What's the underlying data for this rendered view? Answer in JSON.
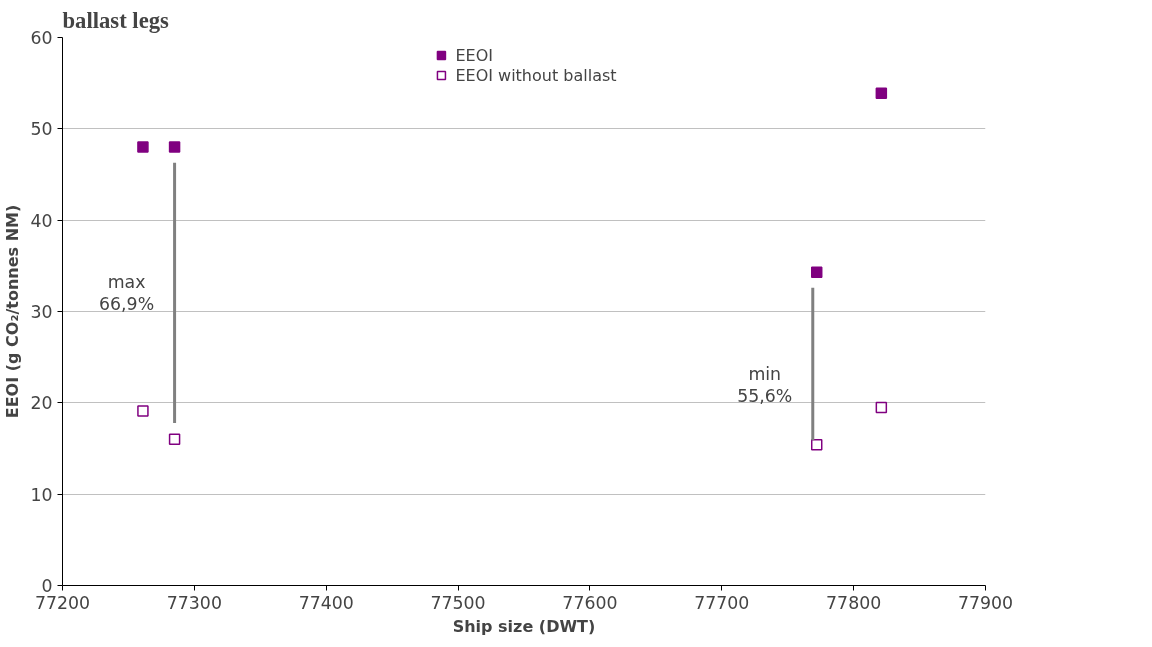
{
  "chart_data": {
    "type": "scatter",
    "title": "ballast legs",
    "xlabel": "Ship size (DWT)",
    "ylabel": "EEOI (g CO₂/tonnes NM)",
    "xlim": [
      77200,
      77900
    ],
    "xticks": [
      77200,
      77300,
      77400,
      77500,
      77600,
      77700,
      77800,
      77900
    ],
    "ylim": [
      0,
      60
    ],
    "yticks": [
      0,
      10,
      20,
      30,
      40,
      50,
      60
    ],
    "grid": "y",
    "legend": "top",
    "series": [
      {
        "name": "EEOI",
        "color": "#800080",
        "marker": "square",
        "x": [
          77261,
          77285,
          77772,
          77821
        ],
        "values": [
          48.0,
          48.0,
          34.3,
          53.9
        ]
      },
      {
        "name": "EEOI without ballast",
        "color": "#800080",
        "marker": "square",
        "x": [
          77261,
          77285,
          77772,
          77821
        ],
        "values": [
          19.1,
          16.0,
          15.4,
          19.5
        ]
      },
      {
        "type": "line",
        "color": "#808080",
        "marker": "none",
        "x": [
          77285,
          77285
        ],
        "values": [
          46.3,
          17.8
        ]
      },
      {
        "type": "line",
        "color": "#808080",
        "marker": "none",
        "x": [
          77769,
          77769
        ],
        "values": [
          32.6,
          15.9
        ]
      }
    ],
    "annotations": [
      {
        "text": "max\n66,9%",
        "x": 77285,
        "y": 32
      },
      {
        "text": "min\n55,6%",
        "x": 77769,
        "y": 22
      }
    ]
  }
}
